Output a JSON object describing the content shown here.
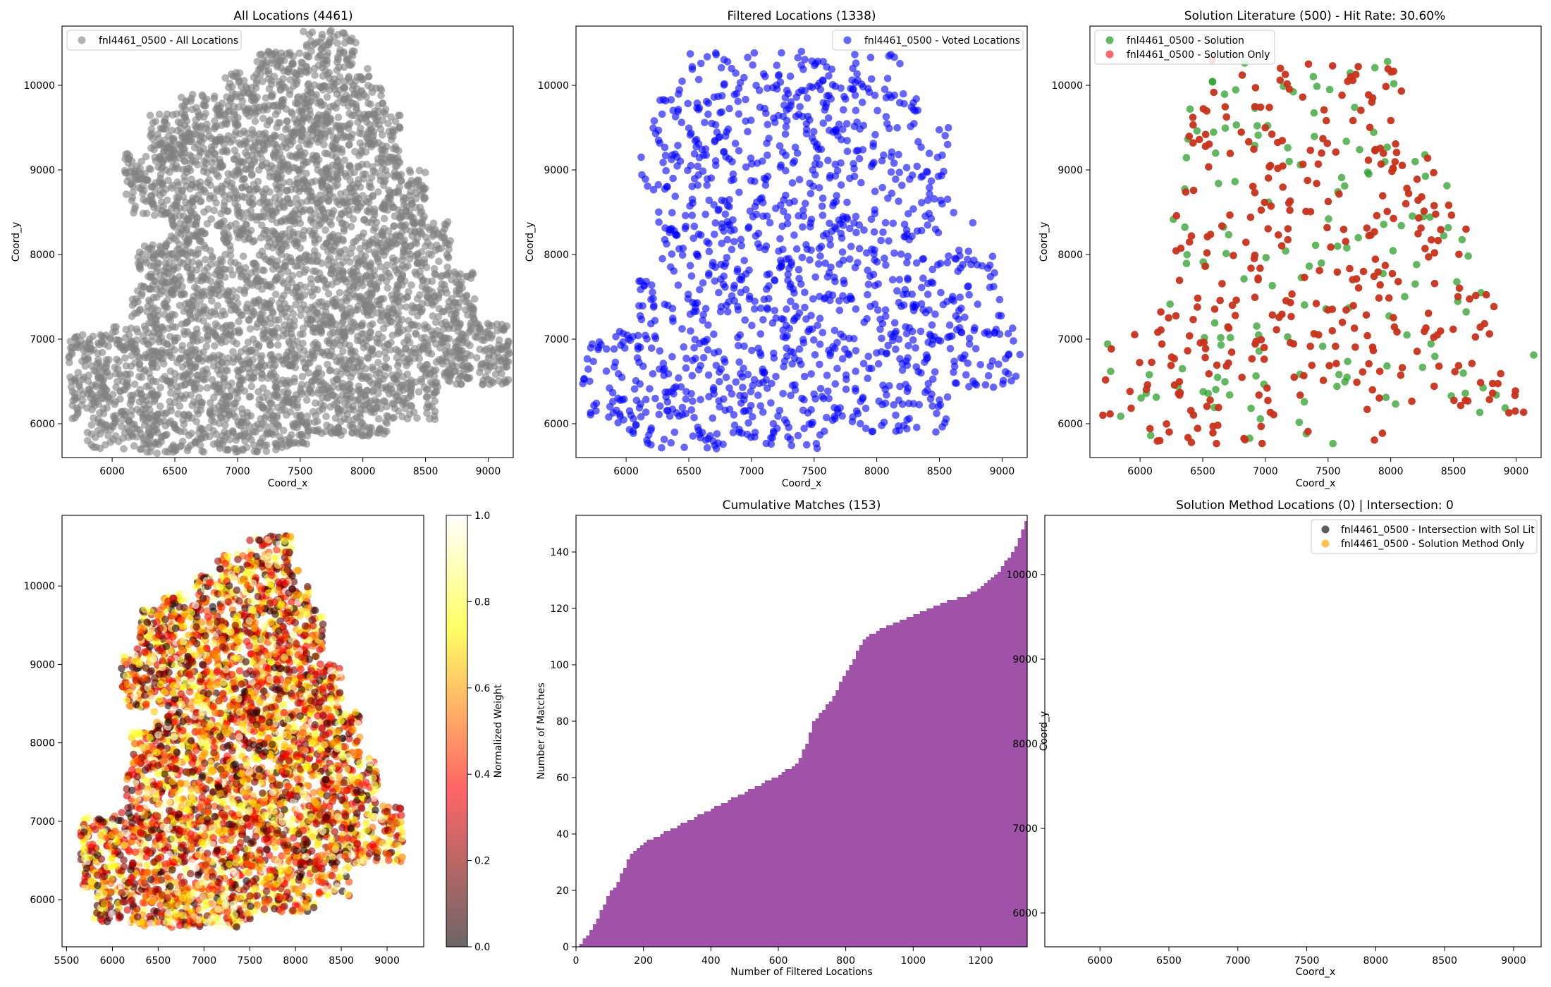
{
  "figure": {
    "background": "#ffffff"
  },
  "chart_data": [
    {
      "id": "all_locations",
      "type": "scatter",
      "title": "All Locations (4461)",
      "xlabel": "Coord_x",
      "ylabel": "Coord_y",
      "xlim": [
        5600,
        9200
      ],
      "ylim": [
        5600,
        10700
      ],
      "xticks": [
        6000,
        6500,
        7000,
        7500,
        8000,
        8500,
        9000
      ],
      "yticks": [
        6000,
        7000,
        8000,
        9000,
        10000
      ],
      "legend_position": "upper-left",
      "series": [
        {
          "name": "fnl4461_0500 - All Locations",
          "color": "#808080",
          "opacity": 0.6,
          "count": 4461,
          "region": "full"
        }
      ]
    },
    {
      "id": "filtered_locations",
      "type": "scatter",
      "title": "Filtered Locations (1338)",
      "xlabel": "Coord_x",
      "ylabel": "Coord_y",
      "xlim": [
        5600,
        9200
      ],
      "ylim": [
        5600,
        10700
      ],
      "xticks": [
        6000,
        6500,
        7000,
        7500,
        8000,
        8500,
        9000
      ],
      "yticks": [
        6000,
        7000,
        8000,
        9000,
        10000
      ],
      "legend_position": "upper-right",
      "series": [
        {
          "name": "fnl4461_0500 - Voted Locations",
          "color": "#0000ff",
          "opacity": 0.6,
          "count": 1338,
          "region": "filtered"
        }
      ]
    },
    {
      "id": "solution_literature",
      "type": "scatter",
      "title": "Solution Literature (500) - Hit Rate: 30.60%",
      "xlabel": "Coord_x",
      "ylabel": "Coord_y",
      "xlim": [
        5600,
        9200
      ],
      "ylim": [
        5600,
        10700
      ],
      "xticks": [
        6000,
        6500,
        7000,
        7500,
        8000,
        8500,
        9000
      ],
      "yticks": [
        6000,
        7000,
        8000,
        9000,
        10000
      ],
      "legend_position": "upper-left",
      "hit_rate": "30.60%",
      "series": [
        {
          "name": "fnl4461_0500 - Solution",
          "color": "#2ca02c",
          "opacity": 0.75,
          "count": 153,
          "region": "solution"
        },
        {
          "name": "fnl4461_0500 - Solution Only",
          "color": "#c8321a",
          "opacity": 0.95,
          "count": 347,
          "region": "solution"
        }
      ]
    },
    {
      "id": "weighted_locations",
      "type": "scatter",
      "title": "",
      "xlabel": "",
      "ylabel": "",
      "xlim": [
        5450,
        9400
      ],
      "ylim": [
        5400,
        10900
      ],
      "xticks": [
        5500,
        6000,
        6500,
        7000,
        7500,
        8000,
        8500,
        9000
      ],
      "yticks": [
        6000,
        7000,
        8000,
        9000,
        10000
      ],
      "colorbar": {
        "label": "Normalized Weight",
        "range": [
          0.0,
          1.0
        ],
        "ticks": [
          "0.0",
          "0.2",
          "0.4",
          "0.6",
          "0.8",
          "1.0"
        ],
        "colormap": "hot",
        "alpha": 0.6
      },
      "series": [
        {
          "name": "",
          "colormap": "hot",
          "opacity": 0.6,
          "count": 4461,
          "region": "full"
        }
      ]
    },
    {
      "id": "cumulative_matches",
      "type": "bar",
      "title": "Cumulative Matches (153)",
      "xlabel": "Number of Filtered Locations",
      "ylabel": "Number of Matches",
      "xlim": [
        0,
        1338
      ],
      "ylim": [
        0,
        153
      ],
      "xticks": [
        0,
        200,
        400,
        600,
        800,
        1000,
        1200
      ],
      "yticks": [
        0,
        20,
        40,
        60,
        80,
        100,
        120,
        140
      ],
      "color": "#a052a8",
      "x": [
        0,
        30,
        60,
        90,
        110,
        140,
        160,
        200,
        250,
        300,
        350,
        400,
        450,
        500,
        550,
        600,
        650,
        680,
        700,
        750,
        800,
        850,
        900,
        950,
        1000,
        1050,
        1100,
        1150,
        1200,
        1250,
        1300,
        1338
      ],
      "values": [
        0,
        4,
        10,
        18,
        21,
        28,
        33,
        37,
        40,
        43,
        46,
        49,
        52,
        55,
        58,
        61,
        65,
        72,
        80,
        87,
        98,
        109,
        113,
        115,
        118,
        120,
        123,
        124,
        128,
        133,
        142,
        153
      ]
    },
    {
      "id": "solution_method",
      "type": "scatter",
      "title": "Solution Method Locations (0) | Intersection: 0",
      "xlabel": "Coord_x",
      "ylabel": "Coord_y",
      "xlim": [
        5600,
        9200
      ],
      "ylim": [
        5600,
        10700
      ],
      "xticks": [
        6000,
        6500,
        7000,
        7500,
        8000,
        8500,
        9000
      ],
      "yticks": [
        6000,
        7000,
        8000,
        9000,
        10000
      ],
      "legend_position": "upper-right",
      "series": [
        {
          "name": "fnl4461_0500 - Intersection with Sol Lit",
          "color": "#404040",
          "opacity": 0.85,
          "count": 0
        },
        {
          "name": "fnl4461_0500 - Solution Method Only",
          "color": "#ffb52e",
          "opacity": 0.85,
          "count": 0
        }
      ]
    }
  ]
}
